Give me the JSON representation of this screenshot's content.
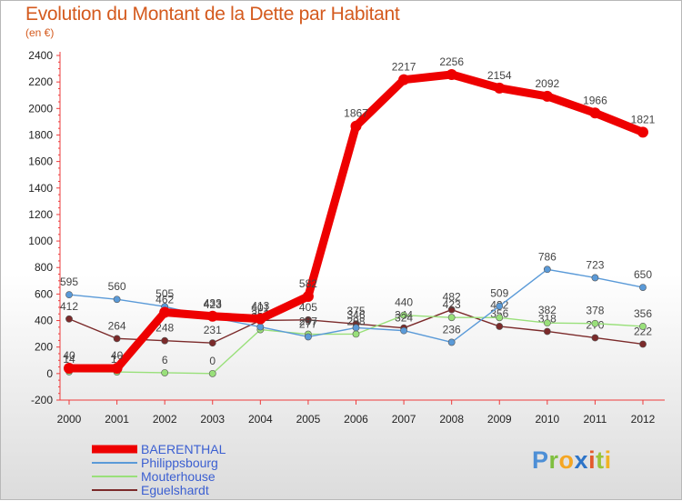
{
  "title": "Evolution du Montant de la Dette par Habitant",
  "subtitle": "(en €)",
  "logo_text": "Proxiti",
  "chart_data": {
    "type": "line",
    "title": "Evolution du Montant de la Dette par Habitant",
    "ylabel": "(en €)",
    "xlabel": "",
    "ylim": [
      -200,
      2400
    ],
    "yticks": [
      -200,
      0,
      200,
      400,
      600,
      800,
      1000,
      1200,
      1400,
      1600,
      1800,
      2000,
      2200,
      2400
    ],
    "grid": false,
    "legend_position": "bottom-left",
    "categories": [
      "2000",
      "2001",
      "2002",
      "2003",
      "2004",
      "2005",
      "2006",
      "2007",
      "2008",
      "2009",
      "2010",
      "2011",
      "2012"
    ],
    "series": [
      {
        "name": "Eguelshardt",
        "color": "#7b2a2a",
        "values": [
          412,
          264,
          248,
          231,
          401,
          405,
          375,
          344,
          482,
          356,
          318,
          270,
          222
        ]
      },
      {
        "name": "Mouterhouse",
        "color": "#99e07a",
        "values": [
          14,
          12,
          6,
          0,
          331,
          297,
          298,
          440,
          423,
          422,
          382,
          378,
          356
        ]
      },
      {
        "name": "Philippsbourg",
        "color": "#5a9ad8",
        "values": [
          595,
          560,
          505,
          423,
          352,
          277,
          346,
          324,
          236,
          509,
          786,
          723,
          650
        ]
      },
      {
        "name": "BAERENTHAL",
        "color": "#ee0000",
        "values": [
          40,
          40,
          462,
          433,
          413,
          582,
          1867,
          2217,
          2256,
          2154,
          2092,
          1966,
          1821
        ]
      }
    ]
  }
}
